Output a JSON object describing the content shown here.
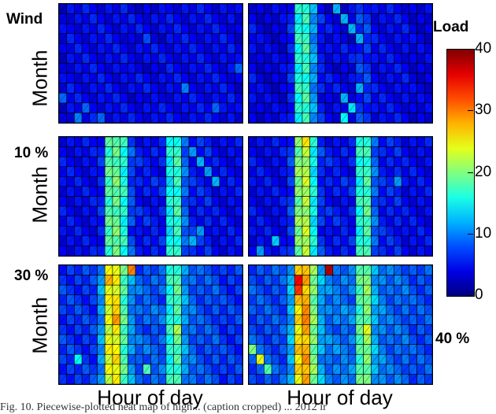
{
  "labels": {
    "wind": "Wind",
    "load": "Load",
    "p10": "10 %",
    "p30": "30 %",
    "p40": "40 %",
    "month": "Month",
    "hour": "Hour of day",
    "caption": "Fig. 10.   Piecewise-plotted heat map of high... (caption cropped) ... 2012 ir"
  },
  "colorbar": {
    "min": 0,
    "max": 40,
    "ticks": [
      "0",
      "10",
      "20",
      "30",
      "40"
    ],
    "colormap": "jet"
  },
  "chart_data": [
    {
      "type": "heatmap",
      "panel": "Wind",
      "xlabel": "",
      "ylabel": "Month",
      "rows": 12,
      "cols": 24,
      "zlim": [
        0,
        40
      ],
      "profile": [
        4,
        5,
        5,
        5,
        5,
        5,
        5,
        5,
        5,
        5,
        5,
        5,
        5,
        5,
        5,
        5,
        5,
        5,
        5,
        5,
        5,
        5,
        5,
        4
      ],
      "hot": [
        [
          11,
          2,
          10
        ],
        [
          11,
          5,
          9
        ],
        [
          10,
          3,
          9
        ],
        [
          9,
          0,
          9
        ],
        [
          8,
          16,
          10
        ],
        [
          10,
          20,
          9
        ],
        [
          6,
          23,
          9
        ],
        [
          3,
          11,
          8
        ]
      ]
    },
    {
      "type": "heatmap",
      "panel": "Load",
      "xlabel": "",
      "ylabel": "",
      "rows": 12,
      "cols": 24,
      "zlim": [
        0,
        40
      ],
      "profile": [
        5,
        4,
        4,
        4,
        4,
        6,
        16,
        17,
        11,
        6,
        5,
        5,
        5,
        5,
        7,
        7,
        5,
        5,
        5,
        5,
        5,
        4,
        4,
        4
      ],
      "hot": [
        [
          0,
          11,
          12
        ],
        [
          1,
          12,
          12
        ],
        [
          2,
          13,
          12
        ],
        [
          3,
          14,
          12
        ],
        [
          8,
          14,
          12
        ],
        [
          9,
          12,
          12
        ],
        [
          10,
          13,
          14
        ],
        [
          11,
          12,
          15
        ]
      ]
    },
    {
      "type": "heatmap",
      "panel": "10 %",
      "xlabel": "",
      "ylabel": "Month",
      "rows": 12,
      "cols": 24,
      "zlim": [
        0,
        40
      ],
      "profile": [
        5,
        5,
        5,
        5,
        5,
        6,
        18,
        19,
        16,
        8,
        6,
        6,
        6,
        6,
        15,
        17,
        9,
        6,
        6,
        6,
        5,
        5,
        5,
        5
      ],
      "hot": [
        [
          1,
          17,
          11
        ],
        [
          2,
          18,
          12
        ],
        [
          3,
          19,
          11
        ],
        [
          4,
          20,
          12
        ],
        [
          9,
          18,
          11
        ],
        [
          10,
          17,
          12
        ]
      ]
    },
    {
      "type": "heatmap",
      "panel": "",
      "xlabel": "",
      "ylabel": "",
      "rows": 12,
      "cols": 24,
      "zlim": [
        0,
        40
      ],
      "profile": [
        5,
        5,
        5,
        5,
        5,
        7,
        20,
        22,
        15,
        7,
        6,
        6,
        6,
        6,
        16,
        18,
        9,
        6,
        6,
        6,
        5,
        5,
        5,
        5
      ],
      "hot": [
        [
          0,
          7,
          26
        ],
        [
          2,
          15,
          16
        ],
        [
          4,
          19,
          11
        ],
        [
          10,
          3,
          13
        ],
        [
          11,
          1,
          11
        ]
      ]
    },
    {
      "type": "heatmap",
      "panel": "30 %",
      "xlabel": "Hour of day",
      "ylabel": "Month",
      "rows": 12,
      "cols": 24,
      "zlim": [
        0,
        40
      ],
      "profile": [
        7,
        7,
        7,
        7,
        7,
        11,
        24,
        25,
        18,
        11,
        9,
        9,
        9,
        9,
        16,
        18,
        11,
        9,
        8,
        8,
        8,
        7,
        7,
        7
      ],
      "hot": [
        [
          0,
          9,
          30
        ],
        [
          1,
          6,
          28
        ],
        [
          3,
          7,
          26
        ],
        [
          5,
          7,
          29
        ],
        [
          6,
          15,
          22
        ],
        [
          9,
          2,
          15
        ],
        [
          10,
          11,
          18
        ]
      ]
    },
    {
      "type": "heatmap",
      "panel": "40 %",
      "xlabel": "Hour of day",
      "ylabel": "",
      "rows": 12,
      "cols": 24,
      "zlim": [
        0,
        40
      ],
      "profile": [
        8,
        8,
        8,
        8,
        8,
        12,
        26,
        28,
        20,
        12,
        10,
        10,
        10,
        10,
        18,
        20,
        12,
        10,
        9,
        9,
        9,
        8,
        8,
        8
      ],
      "hot": [
        [
          0,
          10,
          38
        ],
        [
          1,
          6,
          35
        ],
        [
          2,
          6,
          33
        ],
        [
          5,
          7,
          30
        ],
        [
          6,
          15,
          24
        ],
        [
          8,
          0,
          20
        ],
        [
          9,
          1,
          24
        ],
        [
          10,
          2,
          18
        ]
      ]
    }
  ]
}
